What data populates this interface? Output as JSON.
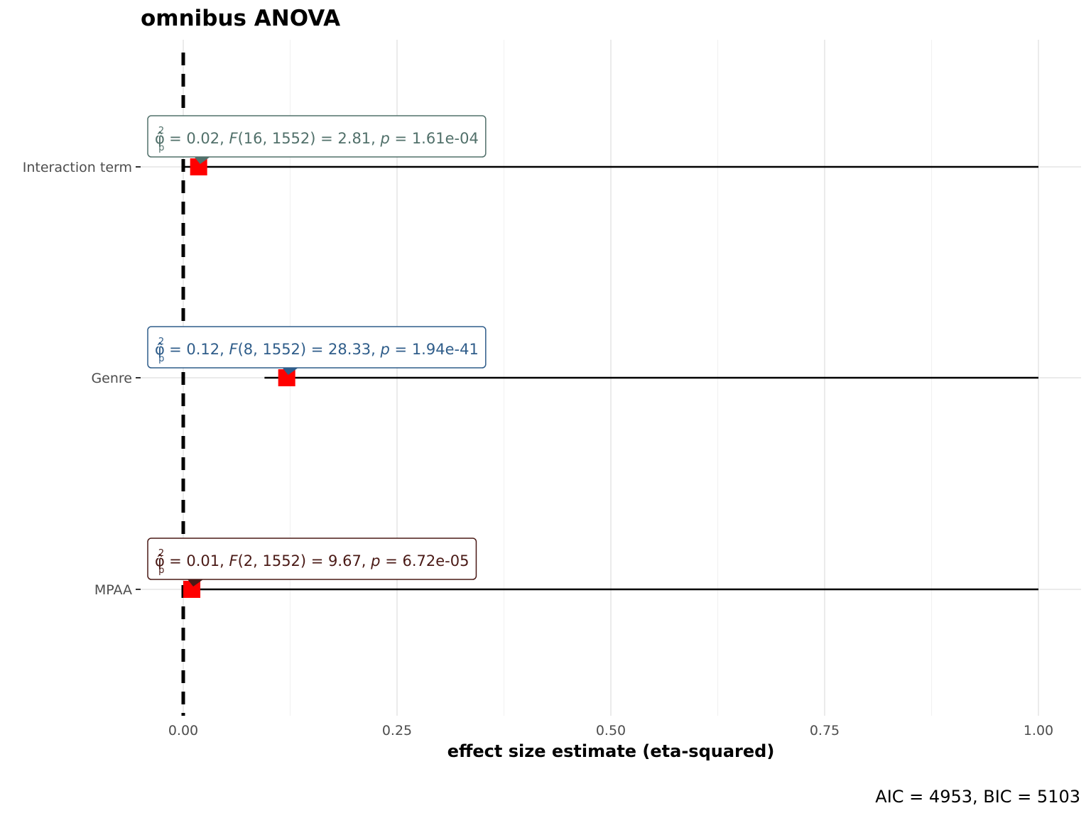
{
  "chart_data": {
    "type": "forest",
    "title": "omnibus ANOVA",
    "xlabel": "effect size estimate (eta-squared)",
    "ylabel": "",
    "xlim": [
      -0.05,
      1.05
    ],
    "x_ticks": [
      0.0,
      0.25,
      0.5,
      0.75,
      1.0
    ],
    "x_tick_labels": [
      "0.00",
      "0.25",
      "0.50",
      "0.75",
      "1.00"
    ],
    "reference_line": 0,
    "grid": true,
    "caption": "AIC = 4953, BIC = 5103",
    "terms": [
      {
        "name": "Interaction term",
        "estimate": 0.018,
        "ci": [
          0.0,
          1.0
        ],
        "label": {
          "eta": "0.02",
          "df": "16, 1552",
          "F": "2.81",
          "p": "1.61e-04"
        },
        "color": "#51706a"
      },
      {
        "name": "Genre",
        "estimate": 0.121,
        "ci": [
          0.095,
          1.0
        ],
        "label": {
          "eta": "0.12",
          "df": "8, 1552",
          "F": "28.33",
          "p": "1.94e-41"
        },
        "color": "#2f5d8a"
      },
      {
        "name": "MPAA",
        "estimate": 0.01,
        "ci": [
          0.0,
          1.0
        ],
        "label": {
          "eta": "0.01",
          "df": "2, 1552",
          "F": "9.67",
          "p": "6.72e-05"
        },
        "color": "#4a1a16"
      }
    ],
    "point_color": "#ff0000"
  }
}
